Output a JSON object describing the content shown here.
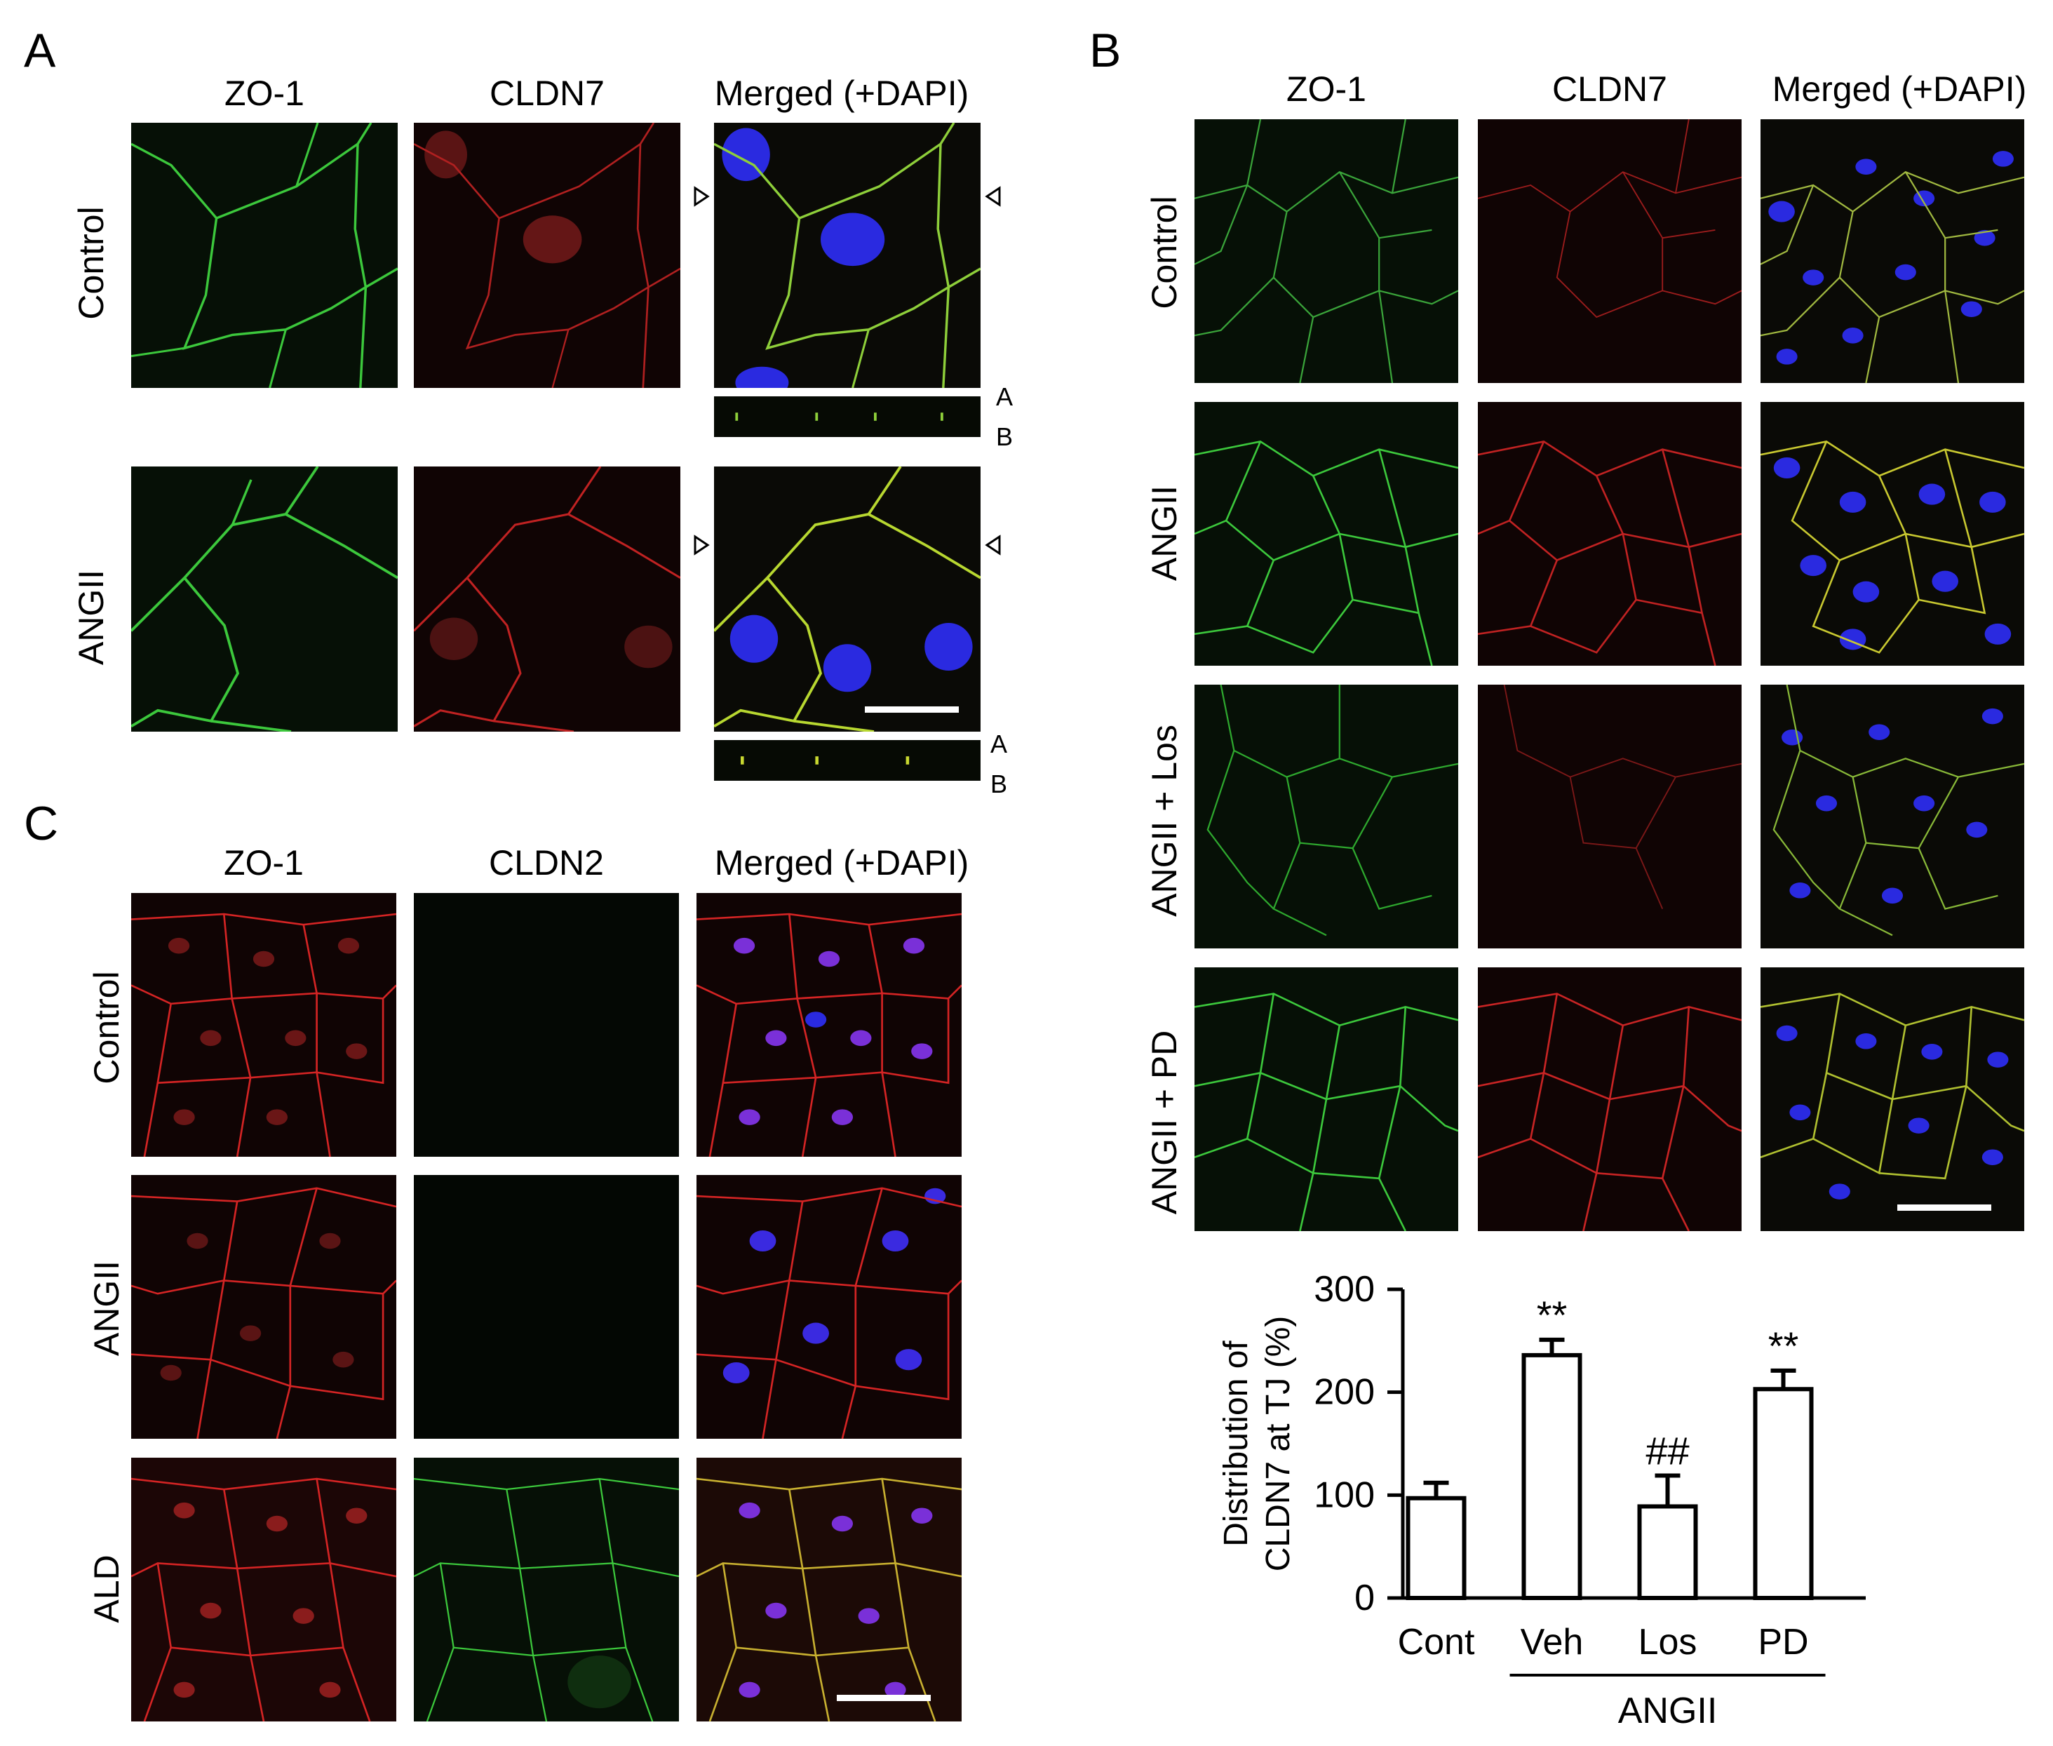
{
  "colors": {
    "green": "#3cc83c",
    "red": "#d42424",
    "blue": "#2a2ae0",
    "black": "#000000",
    "white": "#ffffff"
  },
  "panel_a": {
    "letter": "A",
    "columns": [
      "ZO-1",
      "CLDN7",
      "Merged (+DAPI)"
    ],
    "rows": [
      "Control",
      "ANGII"
    ],
    "strip_labels": [
      "A",
      "B"
    ]
  },
  "panel_b": {
    "letter": "B",
    "columns": [
      "ZO-1",
      "CLDN7",
      "Merged (+DAPI)"
    ],
    "rows": [
      "Control",
      "ANGII",
      "ANGII + Los",
      "ANGII + PD"
    ]
  },
  "panel_c": {
    "letter": "C",
    "columns": [
      "ZO-1",
      "CLDN2",
      "Merged (+DAPI)"
    ],
    "rows": [
      "Control",
      "ANGII",
      "ALD"
    ]
  },
  "chart_data": {
    "type": "bar",
    "categories": [
      "Cont",
      "Veh",
      "Los",
      "PD"
    ],
    "values": [
      97,
      236,
      89,
      203
    ],
    "errors": [
      15,
      15,
      30,
      18
    ],
    "annotations": [
      "",
      "**",
      "##",
      "**"
    ],
    "group_label": "ANGII",
    "ylabel": "Distribution of CLDN7 at TJ (%)",
    "ylabel_lines": [
      "Distribution of",
      "CLDN7 at TJ (%)"
    ],
    "ylim": [
      0,
      300
    ],
    "yticks": [
      0,
      100,
      200,
      300
    ],
    "grid": false,
    "legend": "none"
  }
}
